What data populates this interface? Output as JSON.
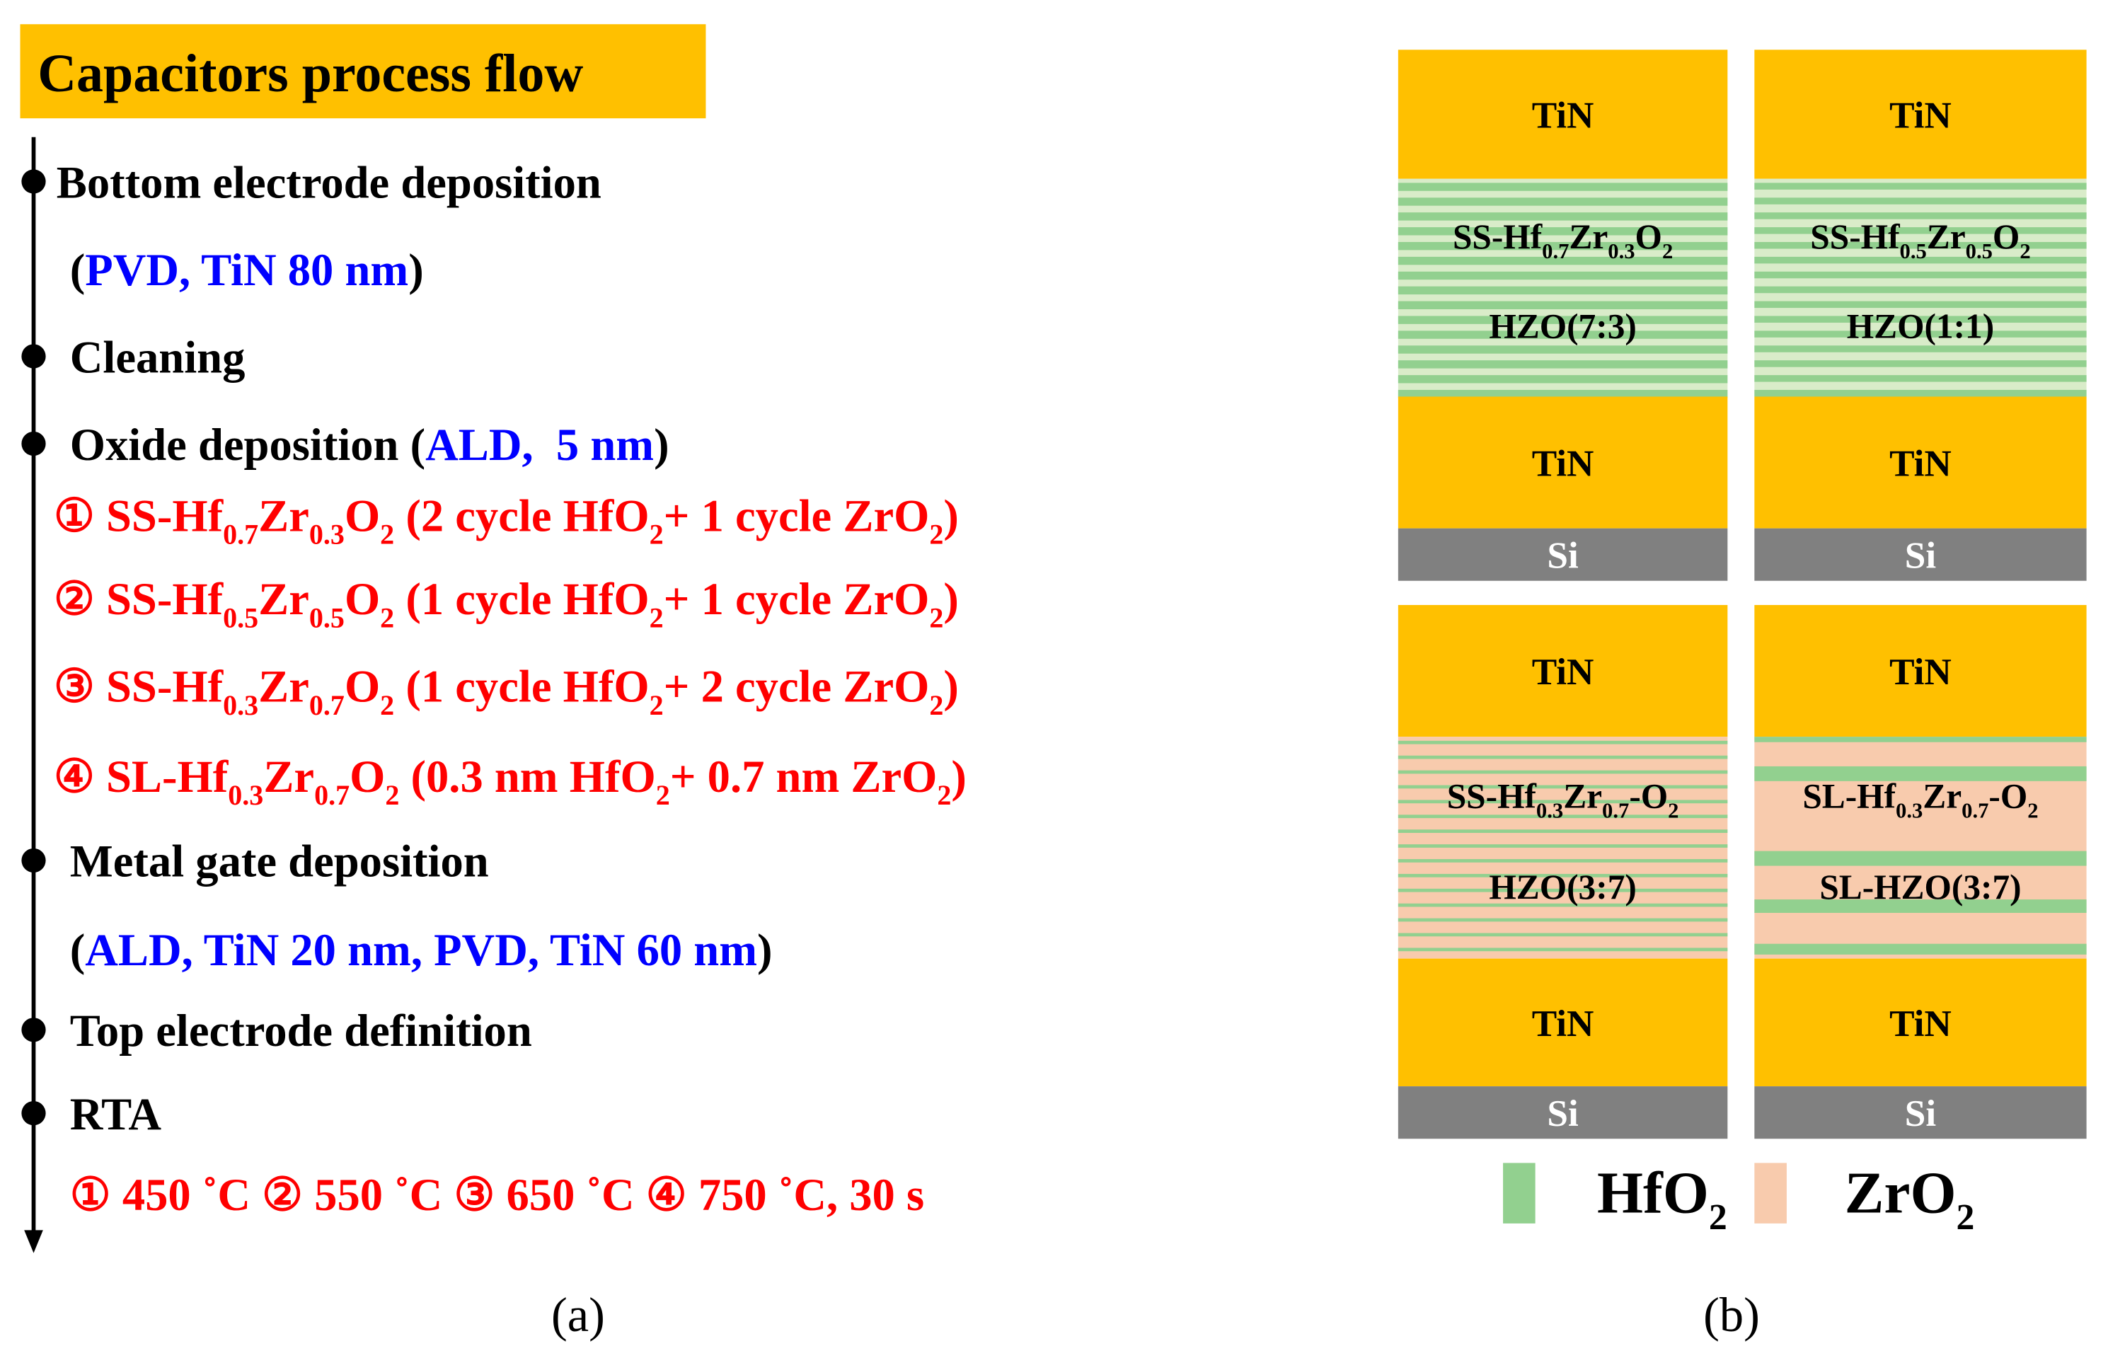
{
  "flow": {
    "title": "Capacitors process flow",
    "lines": [
      [
        {
          "text": "Bottom electrode deposition"
        }
      ],
      [
        {
          "text": "("
        },
        {
          "text": "PVD, TiN 80 nm",
          "color": "#0000ff"
        },
        {
          "text": ")"
        }
      ],
      [
        {
          "text": "Cleaning"
        }
      ],
      [
        {
          "text": "Oxide deposition ("
        },
        {
          "text": "ALD,  5 nm",
          "color": "#0000ff"
        },
        {
          "text": ")"
        }
      ],
      [
        {
          "text": "① SS-Hf",
          "color": "#ff0000"
        },
        {
          "text": "0.7",
          "color": "#ff0000",
          "sub": true
        },
        {
          "text": "Zr",
          "color": "#ff0000"
        },
        {
          "text": "0.3",
          "color": "#ff0000",
          "sub": true
        },
        {
          "text": "O",
          "color": "#ff0000"
        },
        {
          "text": "2",
          "color": "#ff0000",
          "sub": true
        },
        {
          "text": " (2 cycle HfO",
          "color": "#ff0000"
        },
        {
          "text": "2",
          "color": "#ff0000",
          "sub": true
        },
        {
          "text": "+ 1 cycle ZrO",
          "color": "#ff0000"
        },
        {
          "text": "2",
          "color": "#ff0000",
          "sub": true
        },
        {
          "text": ")",
          "color": "#ff0000"
        }
      ],
      [
        {
          "text": "② SS-Hf",
          "color": "#ff0000"
        },
        {
          "text": "0.5",
          "color": "#ff0000",
          "sub": true
        },
        {
          "text": "Zr",
          "color": "#ff0000"
        },
        {
          "text": "0.5",
          "color": "#ff0000",
          "sub": true
        },
        {
          "text": "O",
          "color": "#ff0000"
        },
        {
          "text": "2",
          "color": "#ff0000",
          "sub": true
        },
        {
          "text": " (1 cycle HfO",
          "color": "#ff0000"
        },
        {
          "text": "2",
          "color": "#ff0000",
          "sub": true
        },
        {
          "text": "+ 1 cycle ZrO",
          "color": "#ff0000"
        },
        {
          "text": "2",
          "color": "#ff0000",
          "sub": true
        },
        {
          "text": ")",
          "color": "#ff0000"
        }
      ],
      [
        {
          "text": "③ SS-Hf",
          "color": "#ff0000"
        },
        {
          "text": "0.3",
          "color": "#ff0000",
          "sub": true
        },
        {
          "text": "Zr",
          "color": "#ff0000"
        },
        {
          "text": "0.7",
          "color": "#ff0000",
          "sub": true
        },
        {
          "text": "O",
          "color": "#ff0000"
        },
        {
          "text": "2",
          "color": "#ff0000",
          "sub": true
        },
        {
          "text": " (1 cycle HfO",
          "color": "#ff0000"
        },
        {
          "text": "2",
          "color": "#ff0000",
          "sub": true
        },
        {
          "text": "+ 2 cycle ZrO",
          "color": "#ff0000"
        },
        {
          "text": "2",
          "color": "#ff0000",
          "sub": true
        },
        {
          "text": ")",
          "color": "#ff0000"
        }
      ],
      [
        {
          "text": "④ SL-Hf",
          "color": "#ff0000"
        },
        {
          "text": "0.3",
          "color": "#ff0000",
          "sub": true
        },
        {
          "text": "Zr",
          "color": "#ff0000"
        },
        {
          "text": "0.7",
          "color": "#ff0000",
          "sub": true
        },
        {
          "text": "O",
          "color": "#ff0000"
        },
        {
          "text": "2",
          "color": "#ff0000",
          "sub": true
        },
        {
          "text": " (0.3 nm HfO",
          "color": "#ff0000"
        },
        {
          "text": "2",
          "color": "#ff0000",
          "sub": true
        },
        {
          "text": "+ 0.7 nm ZrO",
          "color": "#ff0000"
        },
        {
          "text": "2",
          "color": "#ff0000",
          "sub": true
        },
        {
          "text": ")",
          "color": "#ff0000"
        }
      ],
      [
        {
          "text": "Metal gate deposition"
        }
      ],
      [
        {
          "text": "("
        },
        {
          "text": "ALD, TiN 20 nm, PVD, TiN 60 nm",
          "color": "#0000ff"
        },
        {
          "text": ")"
        }
      ],
      [
        {
          "text": "Top electrode definition"
        }
      ],
      [
        {
          "text": "RTA"
        }
      ],
      [
        {
          "text": "① 450 ˚C ② 550 ˚C ③ 650 ˚C ④ 750 ˚C, 30 s",
          "color": "#ff0000"
        }
      ]
    ],
    "caption": "(a)"
  },
  "stacks": {
    "items": [
      {
        "top": "TiN",
        "oxide": [
          {
            "text": "SS-Hf"
          },
          {
            "text": "0.7",
            "sub": true
          },
          {
            "text": "Zr"
          },
          {
            "text": "0.3",
            "sub": true
          },
          {
            "text": "O"
          },
          {
            "text": "2",
            "sub": true
          }
        ],
        "label": "HZO(7:3)",
        "bottom": "TiN",
        "substrate": "Si"
      },
      {
        "top": "TiN",
        "oxide": [
          {
            "text": "SS-Hf"
          },
          {
            "text": "0.5",
            "sub": true
          },
          {
            "text": "Zr"
          },
          {
            "text": "0.5",
            "sub": true
          },
          {
            "text": "O"
          },
          {
            "text": "2",
            "sub": true
          }
        ],
        "label": "HZO(1:1)",
        "bottom": "TiN",
        "substrate": "Si"
      },
      {
        "top": "TiN",
        "oxide": [
          {
            "text": "SS-Hf"
          },
          {
            "text": "0.3",
            "sub": true
          },
          {
            "text": "Zr"
          },
          {
            "text": "0.7",
            "sub": true
          },
          {
            "text": "-O"
          },
          {
            "text": "2",
            "sub": true
          }
        ],
        "label": "HZO(3:7)",
        "bottom": "TiN",
        "substrate": "Si"
      },
      {
        "top": "TiN",
        "oxide": [
          {
            "text": "SL-Hf"
          },
          {
            "text": "0.3",
            "sub": true
          },
          {
            "text": "Zr"
          },
          {
            "text": "0.7",
            "sub": true
          },
          {
            "text": "-O"
          },
          {
            "text": "2",
            "sub": true
          }
        ],
        "label": "SL-HZO(3:7)",
        "bottom": "TiN",
        "substrate": "Si"
      }
    ],
    "legend": [
      {
        "label": [
          {
            "text": "HfO"
          },
          {
            "text": "2",
            "sub": true
          }
        ],
        "color": "#92d08f"
      },
      {
        "label": [
          {
            "text": "ZrO"
          },
          {
            "text": "2",
            "sub": true
          }
        ],
        "color": "#f8cbad"
      }
    ],
    "caption": "(b)"
  }
}
